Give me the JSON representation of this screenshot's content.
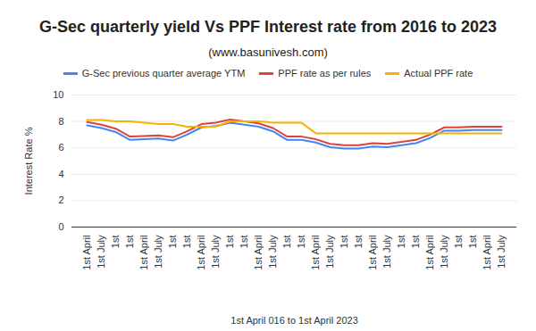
{
  "chart_data": {
    "type": "line",
    "title": "G-Sec quarterly yield Vs PPF Interest rate from 2016 to 2023",
    "subtitle": "(www.basunivesh.com)",
    "x_label": "1st April 016 to 1st April 2023",
    "y_label": "Interest Rate %",
    "categories": [
      "1st April",
      "1st July",
      "1st",
      "1st",
      "1st April",
      "1st July",
      "1st",
      "1st",
      "1st April",
      "1st July",
      "1st",
      "1st",
      "1st April",
      "1st July",
      "1st",
      "1st",
      "1st April",
      "1st July",
      "1st",
      "1st",
      "1st April",
      "1st July",
      "1st",
      "1st",
      "1st April",
      "1st July",
      "1st",
      "1st",
      "1st April",
      "1st July"
    ],
    "series": [
      {
        "name": "G-Sec previous quarter average YTM",
        "color": "#4285f4",
        "values": [
          7.7,
          7.5,
          7.2,
          6.6,
          6.65,
          6.7,
          6.55,
          7.0,
          7.55,
          7.65,
          7.9,
          7.75,
          7.6,
          7.25,
          6.6,
          6.6,
          6.4,
          6.05,
          5.95,
          5.95,
          6.1,
          6.05,
          6.2,
          6.35,
          6.75,
          7.3,
          7.3,
          7.35,
          7.35,
          7.35
        ]
      },
      {
        "name": "PPF rate as per rules",
        "color": "#db4437",
        "values": [
          7.95,
          7.75,
          7.45,
          6.85,
          6.9,
          6.95,
          6.8,
          7.25,
          7.8,
          7.9,
          8.15,
          8.0,
          7.85,
          7.5,
          6.85,
          6.85,
          6.65,
          6.3,
          6.2,
          6.2,
          6.35,
          6.3,
          6.45,
          6.6,
          7.0,
          7.55,
          7.55,
          7.6,
          7.6,
          7.6
        ]
      },
      {
        "name": "Actual PPF rate",
        "color": "#f4b400",
        "values": [
          8.1,
          8.1,
          8.0,
          8.0,
          7.9,
          7.8,
          7.8,
          7.6,
          7.6,
          7.6,
          8.0,
          8.0,
          8.0,
          7.9,
          7.9,
          7.9,
          7.1,
          7.1,
          7.1,
          7.1,
          7.1,
          7.1,
          7.1,
          7.1,
          7.1,
          7.1,
          7.1,
          7.1,
          7.1,
          7.1
        ]
      }
    ],
    "ylim": [
      0,
      10
    ],
    "yticks": [
      0,
      2,
      4,
      6,
      8,
      10
    ],
    "grid": true,
    "legend": "top"
  }
}
